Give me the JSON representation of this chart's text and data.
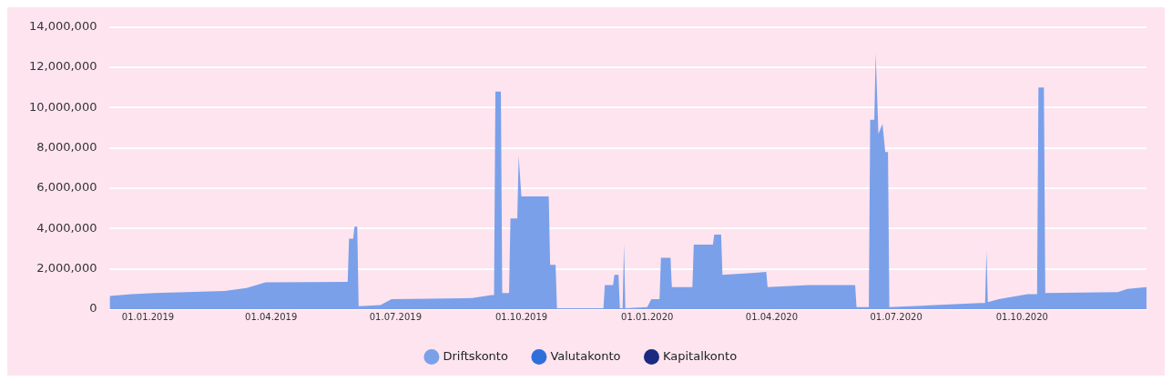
{
  "chart_data": {
    "type": "area",
    "xlim": [
      "2018-12-04",
      "2020-12-31"
    ],
    "xticks": [
      {
        "value": "2019-01-01",
        "label": "01.01.2019"
      },
      {
        "value": "2019-04-01",
        "label": "01.04.2019"
      },
      {
        "value": "2019-07-01",
        "label": "01.07.2019"
      },
      {
        "value": "2019-10-01",
        "label": "01.10.2019"
      },
      {
        "value": "2020-01-01",
        "label": "01.01.2020"
      },
      {
        "value": "2020-04-01",
        "label": "01.04.2020"
      },
      {
        "value": "2020-07-01",
        "label": "01.07.2020"
      },
      {
        "value": "2020-10-01",
        "label": "01.10.2020"
      }
    ],
    "ylim": [
      0,
      14000000
    ],
    "yticks": [
      {
        "value": 0,
        "label": "0"
      },
      {
        "value": 2000000,
        "label": "2,000,000"
      },
      {
        "value": 4000000,
        "label": "4,000,000"
      },
      {
        "value": 6000000,
        "label": "6,000,000"
      },
      {
        "value": 8000000,
        "label": "8,000,000"
      },
      {
        "value": 10000000,
        "label": "10,000,000"
      },
      {
        "value": 12000000,
        "label": "12,000,000"
      },
      {
        "value": 14000000,
        "label": "14,000,000"
      }
    ],
    "grid": "y",
    "legend": "bottom",
    "marker": "none",
    "series": [
      {
        "name": "Driftskonto",
        "color": "#7aa0ea",
        "x": [
          "2018-12-04",
          "2018-12-20",
          "2019-01-06",
          "2019-02-26",
          "2019-03-14",
          "2019-03-28",
          "2019-05-27",
          "2019-05-28",
          "2019-05-31",
          "2019-06-01",
          "2019-06-03",
          "2019-06-04",
          "2019-06-20",
          "2019-06-28",
          "2019-08-26",
          "2019-09-09",
          "2019-09-11",
          "2019-09-12",
          "2019-09-16",
          "2019-09-17",
          "2019-09-22",
          "2019-09-23",
          "2019-09-28",
          "2019-09-29",
          "2019-10-01",
          "2019-10-21",
          "2019-10-22",
          "2019-10-26",
          "2019-10-27",
          "2019-11-30",
          "2019-12-01",
          "2019-12-07",
          "2019-12-08",
          "2019-12-11",
          "2019-12-12",
          "2019-12-14",
          "2019-12-15",
          "2019-12-16",
          "2020-01-01",
          "2020-01-04",
          "2020-01-10",
          "2020-01-11",
          "2020-01-18",
          "2020-01-19",
          "2020-02-03",
          "2020-02-04",
          "2020-02-18",
          "2020-02-19",
          "2020-02-24",
          "2020-02-25",
          "2020-03-20",
          "2020-03-28",
          "2020-03-29",
          "2020-04-28",
          "2020-06-01",
          "2020-06-02",
          "2020-06-11",
          "2020-06-12",
          "2020-06-15",
          "2020-06-16",
          "2020-06-18",
          "2020-06-21",
          "2020-06-23",
          "2020-06-25",
          "2020-06-26",
          "2020-08-31",
          "2020-09-04",
          "2020-09-05",
          "2020-09-06",
          "2020-09-14",
          "2020-10-05",
          "2020-10-12",
          "2020-10-13",
          "2020-10-17",
          "2020-10-18",
          "2020-12-10",
          "2020-12-17",
          "2020-12-31"
        ],
        "values": [
          660000,
          750000,
          800000,
          900000,
          1050000,
          1330000,
          1350000,
          3500000,
          3500000,
          4100000,
          4100000,
          150000,
          200000,
          500000,
          550000,
          700000,
          700000,
          10800000,
          10800000,
          800000,
          800000,
          4500000,
          4500000,
          7600000,
          5600000,
          5600000,
          2200000,
          2200000,
          50000,
          50000,
          1200000,
          1200000,
          1700000,
          1700000,
          50000,
          50000,
          3200000,
          50000,
          100000,
          500000,
          500000,
          2550000,
          2550000,
          1100000,
          1100000,
          3200000,
          3200000,
          3700000,
          3700000,
          1700000,
          1800000,
          1850000,
          1100000,
          1200000,
          1200000,
          100000,
          100000,
          9400000,
          9400000,
          12700000,
          8700000,
          9200000,
          7800000,
          7800000,
          100000,
          300000,
          300000,
          2900000,
          350000,
          500000,
          750000,
          750000,
          11000000,
          11000000,
          800000,
          850000,
          1000000,
          1100000
        ]
      },
      {
        "name": "Valutakonto",
        "color": "#2f6fdc"
      },
      {
        "name": "Kapitalkonto",
        "color": "#1a2a80"
      }
    ]
  }
}
